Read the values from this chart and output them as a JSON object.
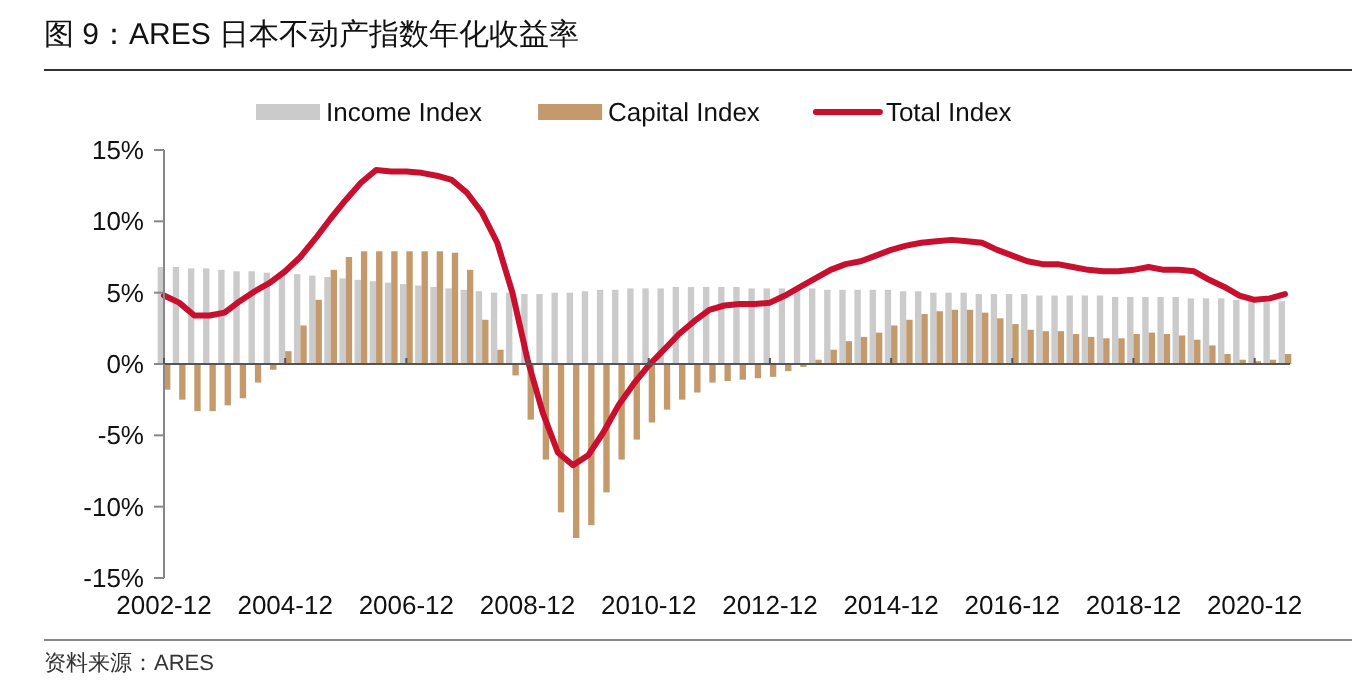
{
  "chart_data": {
    "type": "bar",
    "title": "图 9：ARES 日本不动产指数年化收益率",
    "annotations": [
      "资料来源：ARES"
    ],
    "x": [
      "2002-12",
      "2003-03",
      "2003-06",
      "2003-09",
      "2003-12",
      "2004-03",
      "2004-06",
      "2004-09",
      "2004-12",
      "2005-03",
      "2005-06",
      "2005-09",
      "2005-12",
      "2006-03",
      "2006-06",
      "2006-09",
      "2006-12",
      "2007-03",
      "2007-06",
      "2007-09",
      "2007-12",
      "2008-03",
      "2008-06",
      "2008-09",
      "2008-12",
      "2009-03",
      "2009-06",
      "2009-09",
      "2009-12",
      "2010-03",
      "2010-06",
      "2010-09",
      "2010-12",
      "2011-03",
      "2011-06",
      "2011-09",
      "2011-12",
      "2012-03",
      "2012-06",
      "2012-09",
      "2012-12",
      "2013-03",
      "2013-06",
      "2013-09",
      "2013-12",
      "2014-03",
      "2014-06",
      "2014-09",
      "2014-12",
      "2015-03",
      "2015-06",
      "2015-09",
      "2015-12",
      "2016-03",
      "2016-06",
      "2016-09",
      "2016-12",
      "2017-03",
      "2017-06",
      "2017-09",
      "2017-12",
      "2018-03",
      "2018-06",
      "2018-09",
      "2018-12",
      "2019-03",
      "2019-06",
      "2019-09",
      "2019-12",
      "2020-03",
      "2020-06",
      "2020-09",
      "2020-12",
      "2021-03",
      "2021-06"
    ],
    "series": [
      {
        "name": "Income Index",
        "color": "#cbcbcb",
        "values": [
          6.8,
          6.8,
          6.7,
          6.7,
          6.6,
          6.5,
          6.5,
          6.4,
          6.3,
          6.3,
          6.2,
          6.1,
          6.0,
          5.9,
          5.8,
          5.7,
          5.6,
          5.5,
          5.4,
          5.3,
          5.2,
          5.1,
          5.0,
          5.0,
          4.9,
          4.9,
          5.0,
          5.0,
          5.1,
          5.2,
          5.2,
          5.3,
          5.3,
          5.3,
          5.4,
          5.4,
          5.4,
          5.4,
          5.4,
          5.3,
          5.3,
          5.3,
          5.3,
          5.3,
          5.2,
          5.2,
          5.2,
          5.2,
          5.2,
          5.1,
          5.1,
          5.0,
          5.0,
          5.0,
          4.9,
          4.9,
          4.9,
          4.9,
          4.8,
          4.8,
          4.8,
          4.8,
          4.8,
          4.7,
          4.7,
          4.7,
          4.7,
          4.7,
          4.6,
          4.6,
          4.6,
          4.5,
          4.5,
          4.5,
          4.4
        ]
      },
      {
        "name": "Capital Index",
        "color": "#c49a6c",
        "values": [
          -1.8,
          -2.5,
          -3.3,
          -3.3,
          -2.9,
          -2.4,
          -1.3,
          -0.4,
          0.9,
          2.7,
          4.5,
          6.6,
          7.5,
          7.9,
          7.9,
          7.9,
          7.9,
          7.9,
          7.9,
          7.8,
          6.6,
          3.1,
          1.0,
          -0.8,
          -3.9,
          -6.7,
          -10.4,
          -12.2,
          -11.3,
          -9.0,
          -6.7,
          -5.3,
          -4.1,
          -3.2,
          -2.5,
          -2.0,
          -1.3,
          -1.2,
          -1.1,
          -1.0,
          -0.9,
          -0.5,
          -0.2,
          0.3,
          1.0,
          1.6,
          1.9,
          2.2,
          2.7,
          3.1,
          3.5,
          3.7,
          3.8,
          3.8,
          3.6,
          3.2,
          2.8,
          2.4,
          2.3,
          2.3,
          2.1,
          1.9,
          1.8,
          1.8,
          2.1,
          2.2,
          2.1,
          2.0,
          1.7,
          1.3,
          0.7,
          0.3,
          0.2,
          0.3,
          0.7
        ]
      },
      {
        "name": "Total Index",
        "type": "line",
        "color": "#c8102e",
        "values": [
          4.8,
          4.3,
          3.4,
          3.4,
          3.6,
          4.4,
          5.1,
          5.7,
          6.5,
          7.5,
          8.8,
          10.2,
          11.5,
          12.7,
          13.6,
          13.5,
          13.5,
          13.4,
          13.2,
          12.9,
          12.0,
          10.6,
          8.5,
          5.0,
          0.3,
          -3.4,
          -6.2,
          -7.1,
          -6.4,
          -4.8,
          -2.9,
          -1.4,
          -0.1,
          1.0,
          2.1,
          3.0,
          3.8,
          4.1,
          4.2,
          4.2,
          4.3,
          4.8,
          5.4,
          6.0,
          6.6,
          7.0,
          7.2,
          7.6,
          8.0,
          8.3,
          8.5,
          8.6,
          8.7,
          8.6,
          8.5,
          8.0,
          7.6,
          7.2,
          7.0,
          7.0,
          6.8,
          6.6,
          6.5,
          6.5,
          6.6,
          6.8,
          6.6,
          6.6,
          6.5,
          5.9,
          5.4,
          4.8,
          4.5,
          4.6,
          4.9
        ]
      }
    ],
    "xlim": [
      "2002-12",
      "2021-07"
    ],
    "xticks": [
      "2002-12",
      "2004-12",
      "2006-12",
      "2008-12",
      "2010-12",
      "2012-12",
      "2014-12",
      "2016-12",
      "2018-12",
      "2020-12"
    ],
    "ylim": [
      -15,
      15
    ],
    "yticks": [
      {
        "value": -15,
        "label": "-15%"
      },
      {
        "value": -10,
        "label": "-10%"
      },
      {
        "value": -5,
        "label": "-5%"
      },
      {
        "value": 0,
        "label": "0%"
      },
      {
        "value": 5,
        "label": "5%"
      },
      {
        "value": 10,
        "label": "10%"
      },
      {
        "value": 15,
        "label": "15%"
      }
    ],
    "ref_lines": [
      {
        "axis": "y",
        "value": 0,
        "color": "#555555"
      }
    ],
    "legend": "top",
    "grid": false,
    "marker": "none",
    "line_style": "solid"
  }
}
